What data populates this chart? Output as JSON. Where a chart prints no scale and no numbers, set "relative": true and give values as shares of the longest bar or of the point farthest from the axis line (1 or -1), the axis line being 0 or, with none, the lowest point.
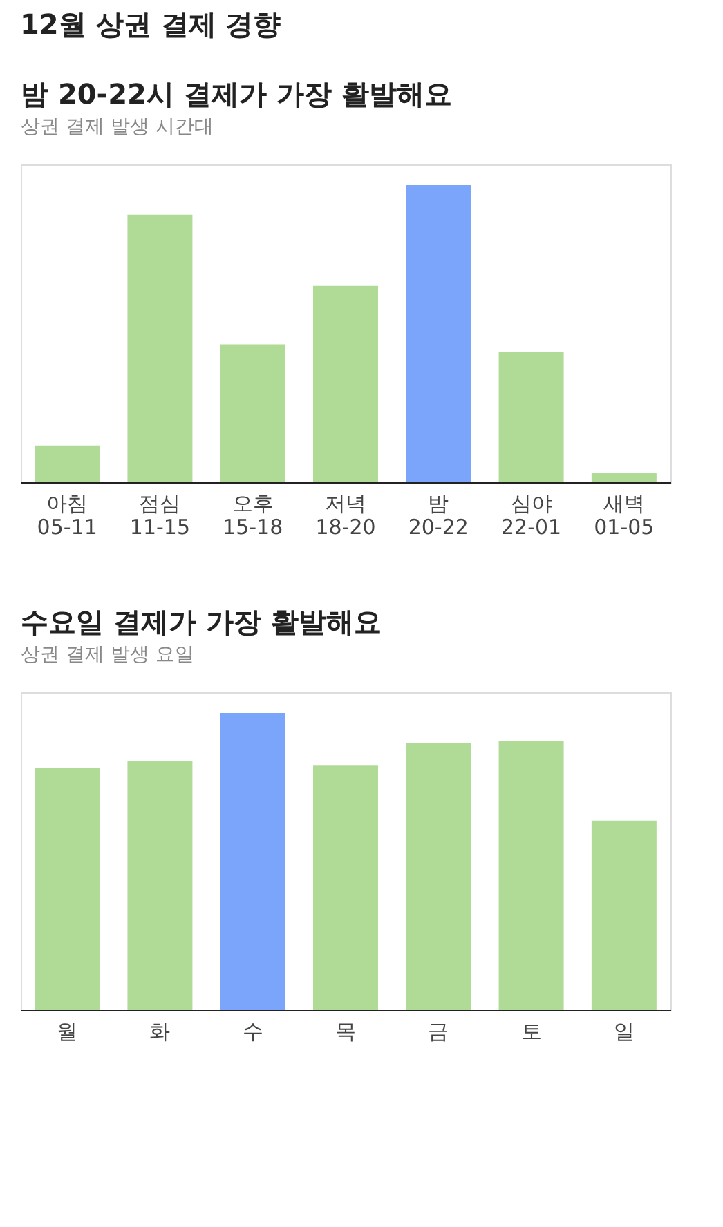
{
  "chart_data": [
    {
      "type": "bar",
      "subtitle": "상권 결제 발생 시간대",
      "title": "밤 20-22시 결제가 가장 활발해요",
      "annotations": [
        "12월 상권 결제 경향"
      ],
      "relative": true,
      "categories": [
        "아침 05-11",
        "점심 11-15",
        "오후 15-18",
        "저녁 18-20",
        "밤 20-22",
        "심야 22-01",
        "새벽 01-05"
      ],
      "values": [
        0.124,
        0.901,
        0.464,
        0.661,
        1,
        0.438,
        0.03
      ],
      "colors": [
        "#b0db96",
        "#b0db96",
        "#b0db96",
        "#b0db96",
        "#7aa5fb",
        "#b0db96",
        "#b0db96"
      ]
    },
    {
      "type": "bar",
      "subtitle": "상권 결제 발생 요일",
      "title": "수요일 결제가 가장 활발해요",
      "relative": true,
      "categories": [
        "월",
        "화",
        "수",
        "목",
        "금",
        "토",
        "일"
      ],
      "values": [
        0.815,
        0.839,
        1,
        0.823,
        0.898,
        0.906,
        0.638
      ],
      "colors": [
        "#b0db96",
        "#b0db96",
        "#7aa5fb",
        "#b0db96",
        "#b0db96",
        "#b0db96",
        "#b0db96"
      ]
    }
  ]
}
